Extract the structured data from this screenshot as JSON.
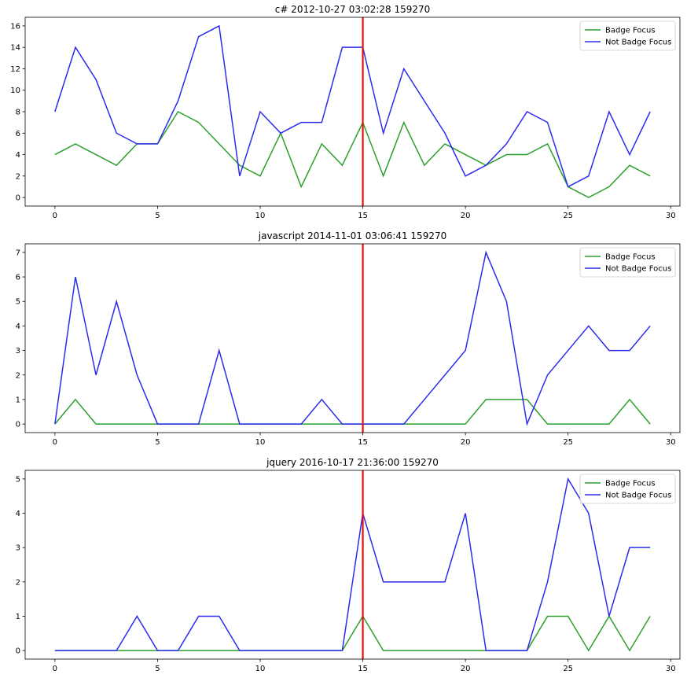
{
  "chart_data": [
    {
      "type": "line",
      "title": "c# 2012-10-27 03:02:28 159270",
      "xlabel": "",
      "ylabel": "",
      "xlim": [
        -1.45,
        30.45
      ],
      "ylim": [
        -0.8,
        16.8
      ],
      "xticks": [
        0,
        5,
        10,
        15,
        20,
        25,
        30
      ],
      "yticks": [
        0,
        2,
        4,
        6,
        8,
        10,
        12,
        14,
        16
      ],
      "vline": 15,
      "legend_position": "top-right",
      "x": [
        0,
        1,
        2,
        3,
        4,
        5,
        6,
        7,
        8,
        9,
        10,
        11,
        12,
        13,
        14,
        15,
        16,
        17,
        18,
        19,
        20,
        21,
        22,
        23,
        24,
        25,
        26,
        27,
        28,
        29
      ],
      "series": [
        {
          "name": "Badge Focus",
          "color": "#2ca02c",
          "values": [
            4,
            5,
            4,
            3,
            5,
            5,
            8,
            7,
            5,
            3,
            2,
            6,
            1,
            5,
            3,
            7,
            2,
            7,
            3,
            5,
            4,
            3,
            4,
            4,
            5,
            1,
            0,
            1,
            3,
            2
          ]
        },
        {
          "name": "Not Badge Focus",
          "color": "#2b2bef",
          "values": [
            8,
            14,
            11,
            6,
            5,
            5,
            9,
            15,
            16,
            2,
            8,
            6,
            7,
            7,
            14,
            14,
            6,
            12,
            9,
            6,
            2,
            3,
            5,
            8,
            7,
            1,
            2,
            8,
            4,
            8
          ]
        }
      ]
    },
    {
      "type": "line",
      "title": "javascript 2014-11-01 03:06:41 159270",
      "xlabel": "",
      "ylabel": "",
      "xlim": [
        -1.45,
        30.45
      ],
      "ylim": [
        -0.35,
        7.35
      ],
      "xticks": [
        0,
        5,
        10,
        15,
        20,
        25,
        30
      ],
      "yticks": [
        0,
        1,
        2,
        3,
        4,
        5,
        6,
        7
      ],
      "vline": 15,
      "legend_position": "top-right",
      "x": [
        0,
        1,
        2,
        3,
        4,
        5,
        6,
        7,
        8,
        9,
        10,
        11,
        12,
        13,
        14,
        15,
        16,
        17,
        18,
        19,
        20,
        21,
        22,
        23,
        24,
        25,
        26,
        27,
        28,
        29
      ],
      "series": [
        {
          "name": "Badge Focus",
          "color": "#2ca02c",
          "values": [
            0,
            1,
            0,
            0,
            0,
            0,
            0,
            0,
            0,
            0,
            0,
            0,
            0,
            0,
            0,
            0,
            0,
            0,
            0,
            0,
            0,
            1,
            1,
            1,
            0,
            0,
            0,
            0,
            1,
            0
          ]
        },
        {
          "name": "Not Badge Focus",
          "color": "#2b2bef",
          "values": [
            0,
            6,
            2,
            5,
            2,
            0,
            0,
            0,
            3,
            0,
            0,
            0,
            0,
            1,
            0,
            0,
            0,
            0,
            1,
            2,
            3,
            7,
            5,
            0,
            2,
            3,
            4,
            3,
            3,
            4
          ]
        }
      ]
    },
    {
      "type": "line",
      "title": "jquery 2016-10-17 21:36:00 159270",
      "xlabel": "",
      "ylabel": "",
      "xlim": [
        -1.45,
        30.45
      ],
      "ylim": [
        -0.25,
        5.25
      ],
      "xticks": [
        0,
        5,
        10,
        15,
        20,
        25,
        30
      ],
      "yticks": [
        0,
        1,
        2,
        3,
        4,
        5
      ],
      "vline": 15,
      "legend_position": "top-right",
      "x": [
        0,
        1,
        2,
        3,
        4,
        5,
        6,
        7,
        8,
        9,
        10,
        11,
        12,
        13,
        14,
        15,
        16,
        17,
        18,
        19,
        20,
        21,
        22,
        23,
        24,
        25,
        26,
        27,
        28,
        29
      ],
      "series": [
        {
          "name": "Badge Focus",
          "color": "#2ca02c",
          "values": [
            0,
            0,
            0,
            0,
            0,
            0,
            0,
            0,
            0,
            0,
            0,
            0,
            0,
            0,
            0,
            1,
            0,
            0,
            0,
            0,
            0,
            0,
            0,
            0,
            1,
            1,
            0,
            1,
            0,
            1
          ]
        },
        {
          "name": "Not Badge Focus",
          "color": "#2b2bef",
          "values": [
            0,
            0,
            0,
            0,
            1,
            0,
            0,
            1,
            1,
            0,
            0,
            0,
            0,
            0,
            0,
            4,
            2,
            2,
            2,
            2,
            4,
            0,
            0,
            0,
            2,
            5,
            4,
            1,
            3,
            3
          ]
        }
      ]
    }
  ],
  "colors": {
    "vline": "#e3120b",
    "axis": "#000000",
    "legend_border": "#cccccc"
  }
}
